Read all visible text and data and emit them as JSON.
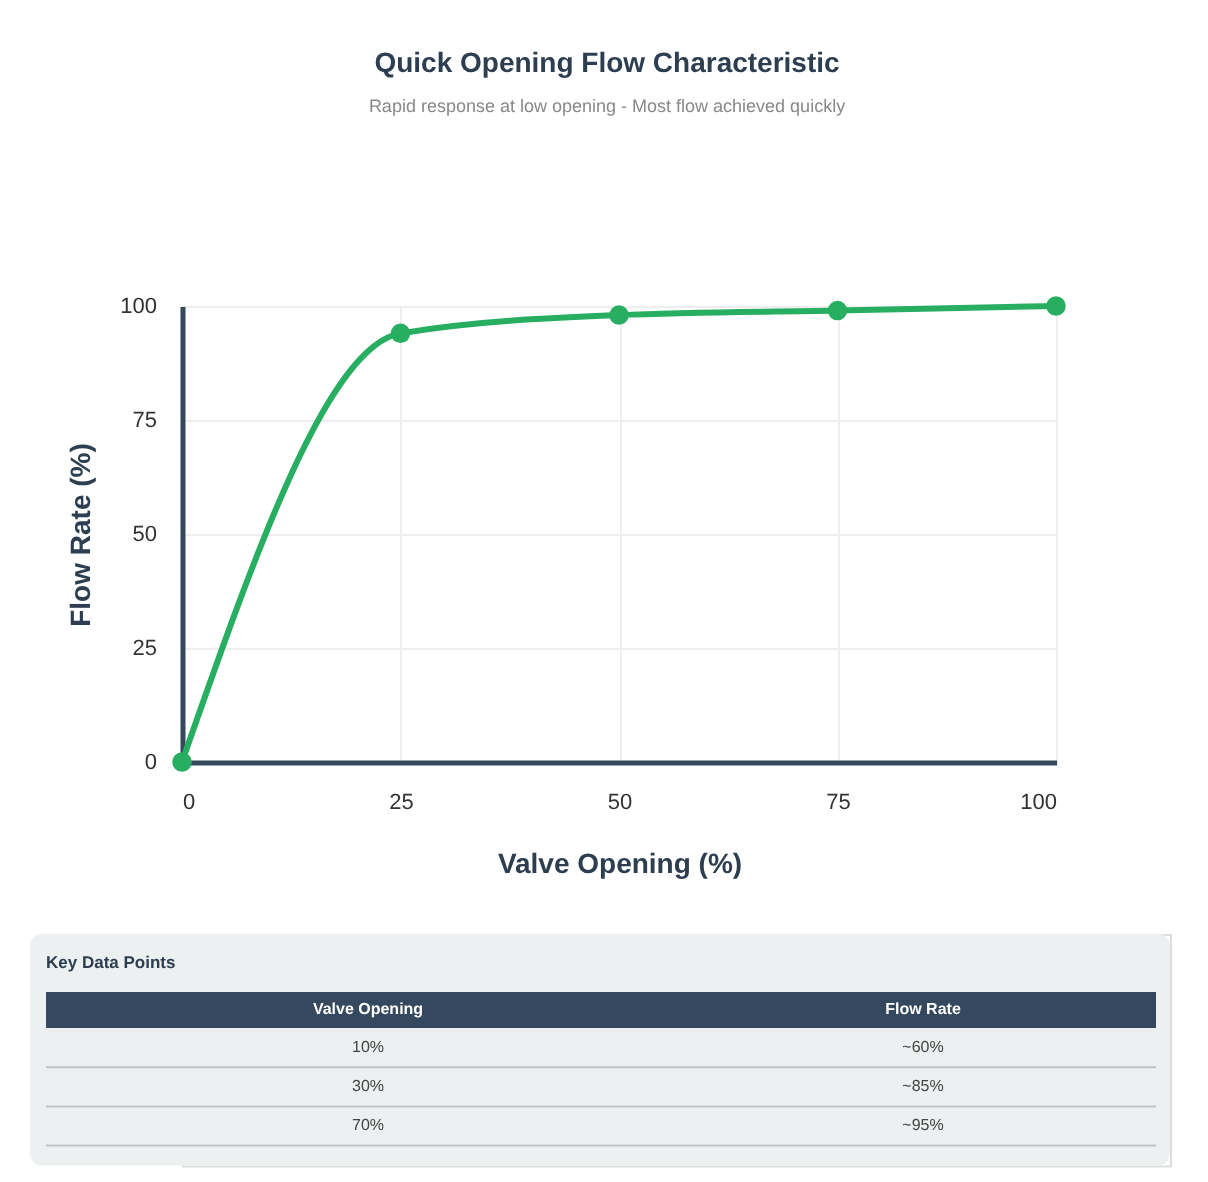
{
  "chart_data": [
    {
      "type": "line",
      "title": "Quick Opening Flow Characteristic",
      "subtitle": "Rapid response at low opening - Most flow achieved quickly",
      "xlabel": "Valve Opening (%)",
      "ylabel": "Flow Rate (%)",
      "x": [
        0,
        25,
        50,
        75,
        100
      ],
      "series": [
        {
          "color": "#27ae60",
          "values": [
            0,
            94,
            98,
            99,
            100
          ]
        }
      ],
      "xlim": [
        0,
        100
      ],
      "xticks": [
        0,
        25,
        50,
        75,
        100
      ],
      "ylim": [
        0,
        100
      ],
      "yticks": [
        0,
        25,
        50,
        75,
        100
      ],
      "grid": true,
      "marker": "circle",
      "line_style": "solid"
    },
    {
      "type": "other",
      "title": "Key Data Points",
      "categories": [
        "Valve Opening",
        "Flow Rate"
      ],
      "annotations": [
        "10%",
        "~60%",
        "30%",
        "~85%",
        "70%",
        "~95%"
      ]
    }
  ]
}
